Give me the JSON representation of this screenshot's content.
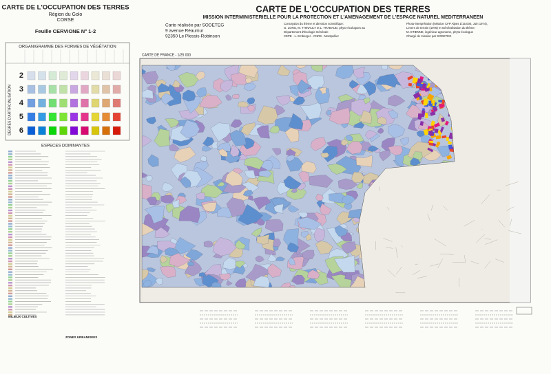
{
  "left_panel": {
    "title": "CARTE DE L'OCCUPATION DES TERRES",
    "region": "Région du Golo",
    "island": "CORSE",
    "sheet": "Feuille CERVIONE N° 1-2",
    "organigram_title": "ORGANIGRAMME DES FORMES DE VÉGÉTATION",
    "axis_label": "DEGRÉS D'ARTIFICIALISATION",
    "degrees": [
      "2",
      "3",
      "4",
      "5",
      "6"
    ],
    "species_title": "ESPECES DOMINANTES",
    "cultures_title": "MILIEUX CULTIVÉS",
    "urban_title": "ZONES URBANISEES"
  },
  "header": {
    "title": "CARTE DE L'OCCUPATION DES TERRES",
    "subtitle": "MISSION INTERMINISTERIELLE POUR LA PROTECTION ET L'AMENAGEMENT DE L'ESPACE NATUREL MEDITERRANEEN"
  },
  "credits": {
    "maker": [
      "Carte réalisée par SODETEG",
      "9 avenue Réaumur",
      "92350 Le Plessis-Robinson"
    ],
    "science": [
      "Conception du thème et direction scientifique:",
      "G. LONG, M. THINAULT et L. TRABAUD, phyto-écologues au",
      "Département d'Écologie Générale",
      "CEPE - L. Emberger - CNRS - Montpellier"
    ],
    "survey": [
      "Photo-interprétation (Mission CFP Alpes 1/15.000, Juin 1974),",
      "Levers de terrain (1975) et Généralisation du thème:",
      "M. ETIENNE, ingénieur agronome, phyto-écologue",
      "Chargé de mission par SODETEG"
    ]
  },
  "map": {
    "label": "CARTE DE FRANCE - 1/25 000"
  }
}
